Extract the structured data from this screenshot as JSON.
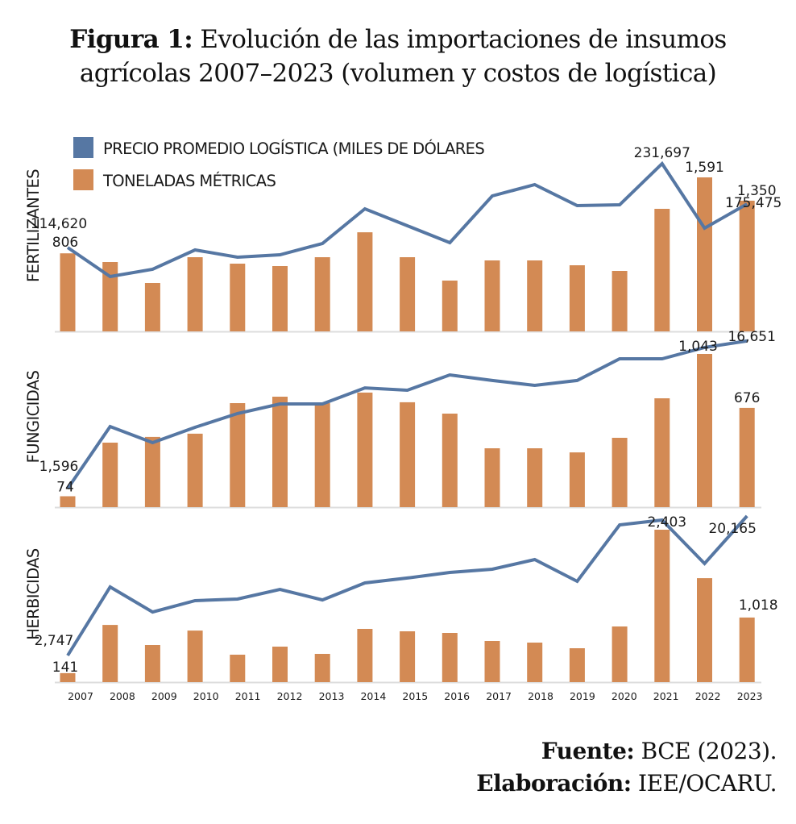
{
  "title": {
    "prefix": "Figura 1:",
    "line1": " Evolución de las importaciones de insumos",
    "line2": "agrícolas 2007–2023 (volumen y costos de logística)"
  },
  "source": {
    "fuente_label": "Fuente:",
    "fuente_value": " BCE (2023).",
    "elaboracion_label": "Elaboración:",
    "elaboracion_value": " IEE/OCARU."
  },
  "colors": {
    "line": "#5677a3",
    "bar": "#d38a54",
    "axis": "#dddddd"
  },
  "chart_data": {
    "type": "bar",
    "combo": "bar + line, three stacked panels sharing x axis",
    "title": "Figura 1: Evolución de las importaciones de insumos agrícolas 2007–2023 (volumen y costos de logística)",
    "legend": {
      "placement": "top-left",
      "entries": [
        {
          "name": "PRECIO PROMEDIO LOGÍSTICA (MILES DE DÓLARES",
          "kind": "line"
        },
        {
          "name": "TONELADAS MÉTRICAS",
          "kind": "bar"
        }
      ]
    },
    "categories": [
      "2007",
      "2008",
      "2009",
      "2010",
      "2011",
      "2012",
      "2013",
      "2014",
      "2015",
      "2016",
      "2017",
      "2018",
      "2019",
      "2020",
      "2021",
      "2022",
      "2023"
    ],
    "grid": false,
    "panels": [
      {
        "name": "FERTILIZANTES",
        "series": [
          {
            "name": "TONELADAS MÉTRICAS",
            "kind": "bar",
            "values": [
              806,
              716,
              500,
              766,
              700,
              675,
              766,
              1024,
              766,
              525,
              733,
              733,
              683,
              625,
              1266,
              1591,
              1350
            ],
            "labels": {
              "0": "806",
              "15": "1,591",
              "16": "1,350"
            }
          },
          {
            "name": "PRECIO PROMEDIO LOGÍSTICA (MILES DE DÓLARES",
            "kind": "line",
            "values": [
              114620,
              74080,
              84210,
              111240,
              101110,
              104490,
              120250,
              168670,
              145030,
              121380,
              186690,
              202460,
              173180,
              174300,
              231697,
              141650,
              175475
            ],
            "labels": {
              "0": "114,620",
              "14": "231,697",
              "16": "175,475"
            }
          }
        ]
      },
      {
        "name": "FUNGICIDAS",
        "series": [
          {
            "name": "TONELADAS MÉTRICAS",
            "kind": "bar",
            "values": [
              74,
              439,
              478,
              500,
              708,
              752,
              708,
              780,
              714,
              637,
              401,
              401,
              373,
              472,
              741,
              1043,
              676
            ],
            "labels": {
              "0": "74",
              "15": "1,043",
              "16": "676"
            }
          },
          {
            "name": "PRECIO PROMEDIO LOGÍSTICA (MILES DE DÓLARES",
            "kind": "line",
            "values": [
              1596,
              7930,
              6280,
              7850,
              9250,
              10230,
              10230,
              11870,
              11630,
              13190,
              12620,
              12120,
              12620,
              14840,
              14840,
              15990,
              16651
            ],
            "labels": {
              "0": "1,596",
              "16": "16,651"
            }
          }
        ]
      },
      {
        "name": "HERBICIDAS",
        "series": [
          {
            "name": "TONELADAS MÉTRICAS",
            "kind": "bar",
            "values": [
              141,
              902,
              585,
              813,
              432,
              559,
              445,
              839,
              801,
              775,
              648,
              623,
              534,
              877,
              2403,
              1639,
              1018
            ],
            "labels": {
              "0": "141",
              "14": "2,403",
              "16": "1,018"
            }
          },
          {
            "name": "PRECIO PROMEDIO LOGÍSTICA (MILES DE DÓLARES",
            "kind": "line",
            "values": [
              2747,
              11310,
              8180,
              9590,
              9800,
              11000,
              9690,
              11810,
              12420,
              13120,
              13520,
              14730,
              12010,
              19060,
              19670,
              14230,
              20165
            ],
            "labels": {
              "0": "2,747",
              "16": "20,165"
            }
          }
        ]
      }
    ]
  }
}
